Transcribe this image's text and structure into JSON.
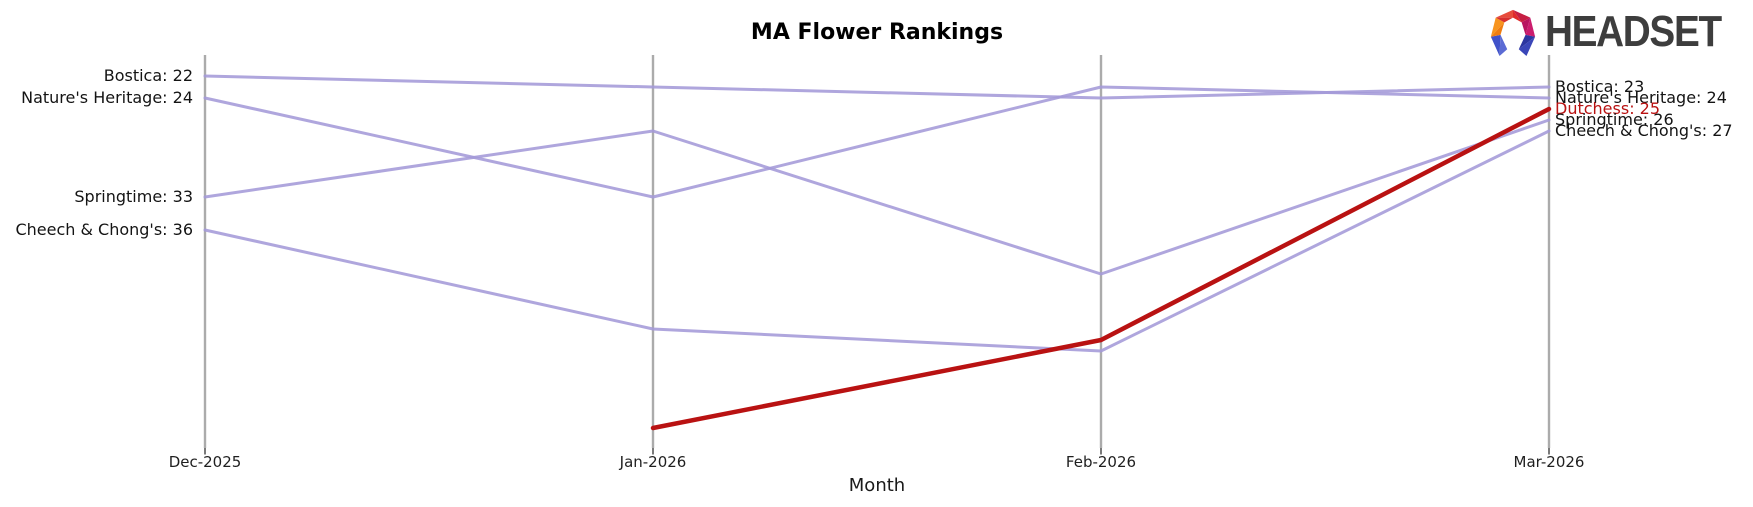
{
  "header": {
    "logo_text": "HEADSET",
    "logo_icon": "headset-logo-icon"
  },
  "chart_data": {
    "type": "line",
    "subtype": "bump-ranking",
    "title": "MA Flower Rankings",
    "xlabel": "Month",
    "categories": [
      "Dec-2025",
      "Jan-2026",
      "Feb-2026",
      "Mar-2026"
    ],
    "series": [
      {
        "name": "Bostica",
        "values": [
          22,
          23,
          24,
          23
        ],
        "highlight": false
      },
      {
        "name": "Nature's Heritage",
        "values": [
          24,
          33,
          23,
          24
        ],
        "highlight": false
      },
      {
        "name": "Springtime",
        "values": [
          33,
          27,
          40,
          26
        ],
        "highlight": false
      },
      {
        "name": "Cheech & Chong's",
        "values": [
          36,
          45,
          47,
          27
        ],
        "highlight": false
      },
      {
        "name": "Dutchess",
        "values": [
          null,
          54,
          46,
          25
        ],
        "highlight": true
      }
    ],
    "start_labels": [
      {
        "text": "Bostica: 22",
        "rank": 22,
        "color": "#141414"
      },
      {
        "text": "Nature's Heritage: 24",
        "rank": 24,
        "color": "#141414"
      },
      {
        "text": "Springtime: 33",
        "rank": 33,
        "color": "#141414"
      },
      {
        "text": "Cheech & Chong's: 36",
        "rank": 36,
        "color": "#141414"
      }
    ],
    "end_labels": [
      {
        "text": "Bostica: 23",
        "rank": 23,
        "color": "#141414"
      },
      {
        "text": "Nature's Heritage: 24",
        "rank": 24,
        "color": "#141414"
      },
      {
        "text": "Dutchess: 25",
        "rank": 25,
        "color": "#b91212"
      },
      {
        "text": "Springtime: 26",
        "rank": 26,
        "color": "#141414"
      },
      {
        "text": "Cheech & Chong's: 27",
        "rank": 27,
        "color": "#141414"
      }
    ],
    "colors": {
      "line": "#a49ad8",
      "highlight": "#b91212",
      "axis": "#ababab",
      "tick": "#222222"
    },
    "y_axis": {
      "inverted": true,
      "range": [
        22,
        56
      ],
      "grid": false
    },
    "legend": "none (direct labels at line ends)"
  }
}
